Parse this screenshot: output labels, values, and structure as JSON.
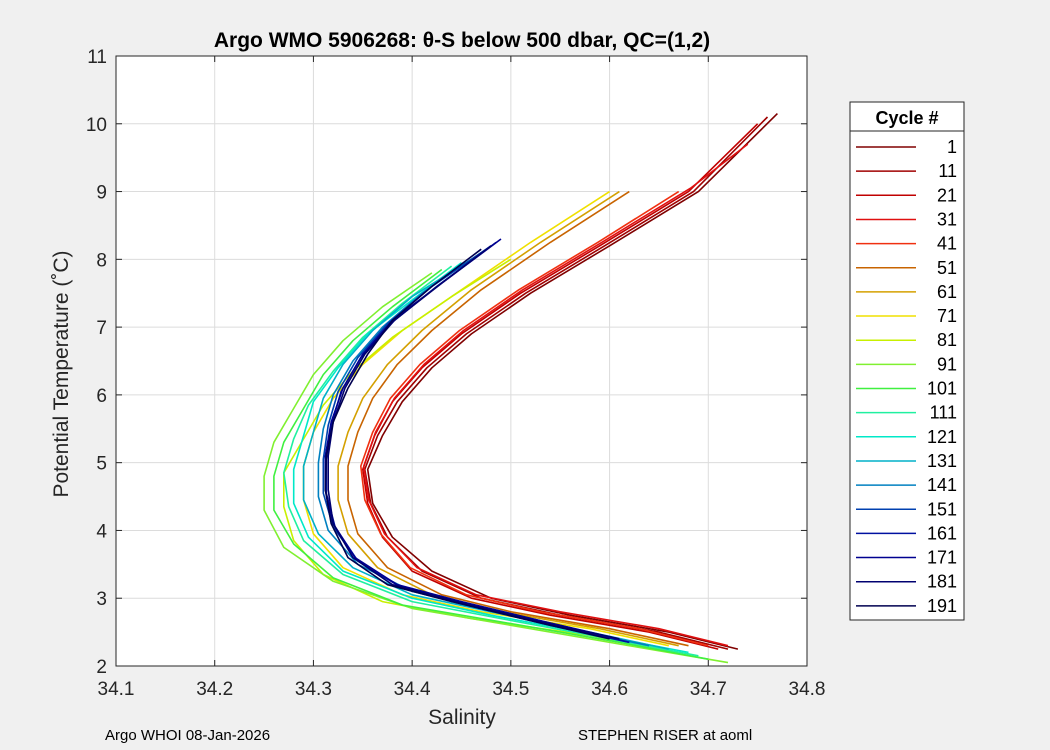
{
  "chart_data": {
    "type": "line",
    "title": "Argo WMO 5906268: θ-S below 500 dbar,  QC=(1,2)",
    "xlabel": "Salinity",
    "ylabel": "Potential Temperature (˚C)",
    "xlim": [
      34.1,
      34.8
    ],
    "ylim": [
      2,
      11
    ],
    "xticks": [
      "34.1",
      "34.2",
      "34.3",
      "34.4",
      "34.5",
      "34.6",
      "34.7",
      "34.8"
    ],
    "yticks": [
      "2",
      "3",
      "4",
      "5",
      "6",
      "7",
      "8",
      "9",
      "10",
      "11"
    ],
    "grid": true,
    "legend": {
      "title": "Cycle #",
      "position": "right",
      "entries": [
        "1",
        "11",
        "21",
        "31",
        "41",
        "51",
        "61",
        "71",
        "81",
        "91",
        "101",
        "111",
        "121",
        "131",
        "141",
        "151",
        "161",
        "171",
        "181",
        "191"
      ],
      "colors": [
        "#800000",
        "#a00000",
        "#c00000",
        "#e01010",
        "#f03010",
        "#c86400",
        "#d4a000",
        "#f0e000",
        "#c8f000",
        "#80f030",
        "#40f040",
        "#20f0a0",
        "#00e8c8",
        "#00b0c8",
        "#0080c0",
        "#0040b0",
        "#0010a0",
        "#000090",
        "#000070",
        "#000050"
      ]
    },
    "series": [
      {
        "name": "1",
        "color": "#800000",
        "s": [
          34.73,
          34.66,
          34.56,
          34.48,
          34.42,
          34.38,
          34.36,
          34.355,
          34.37,
          34.39,
          34.42,
          34.46,
          34.52,
          34.6,
          34.69,
          34.77
        ],
        "t": [
          2.25,
          2.5,
          2.75,
          3.0,
          3.4,
          3.9,
          4.4,
          4.9,
          5.4,
          5.9,
          6.4,
          6.9,
          7.5,
          8.2,
          9.0,
          10.15
        ]
      },
      {
        "name": "11",
        "color": "#a00000",
        "s": [
          34.72,
          34.65,
          34.55,
          34.47,
          34.41,
          34.375,
          34.358,
          34.352,
          34.365,
          34.385,
          34.415,
          34.455,
          34.515,
          34.595,
          34.685,
          34.76
        ],
        "t": [
          2.25,
          2.5,
          2.75,
          3.0,
          3.4,
          3.9,
          4.4,
          4.9,
          5.4,
          5.9,
          6.4,
          6.9,
          7.5,
          8.2,
          9.0,
          10.1
        ]
      },
      {
        "name": "21",
        "color": "#c00000",
        "s": [
          34.71,
          34.64,
          34.54,
          34.46,
          34.4,
          34.37,
          34.355,
          34.35,
          34.362,
          34.38,
          34.41,
          34.45,
          34.51,
          34.59,
          34.68,
          34.75
        ],
        "t": [
          2.25,
          2.5,
          2.75,
          3.0,
          3.4,
          3.9,
          4.4,
          4.9,
          5.4,
          5.9,
          6.4,
          6.9,
          7.5,
          8.2,
          9.0,
          10.0
        ]
      },
      {
        "name": "31",
        "color": "#e01010",
        "s": [
          34.72,
          34.65,
          34.55,
          34.465,
          34.405,
          34.372,
          34.356,
          34.351,
          34.363,
          34.382,
          34.412,
          34.452,
          34.512,
          34.592,
          34.682,
          34.74
        ],
        "t": [
          2.3,
          2.55,
          2.8,
          3.05,
          3.45,
          3.95,
          4.45,
          4.95,
          5.45,
          5.95,
          6.45,
          6.95,
          7.55,
          8.25,
          9.05,
          9.7
        ]
      },
      {
        "name": "41",
        "color": "#f03010",
        "s": [
          34.7,
          34.63,
          34.53,
          34.455,
          34.398,
          34.368,
          34.352,
          34.348,
          34.36,
          34.378,
          34.408,
          34.448,
          34.508,
          34.588,
          34.67
        ],
        "t": [
          2.3,
          2.55,
          2.8,
          3.05,
          3.45,
          3.95,
          4.45,
          4.95,
          5.45,
          5.95,
          6.45,
          6.95,
          7.55,
          8.25,
          9.0
        ]
      },
      {
        "name": "51",
        "color": "#c86400",
        "s": [
          34.68,
          34.6,
          34.5,
          34.43,
          34.375,
          34.345,
          34.335,
          34.335,
          34.345,
          34.36,
          34.385,
          34.42,
          34.47,
          34.54,
          34.62
        ],
        "t": [
          2.3,
          2.55,
          2.8,
          3.05,
          3.45,
          3.95,
          4.45,
          4.95,
          5.45,
          5.95,
          6.45,
          6.95,
          7.55,
          8.25,
          9.0
        ]
      },
      {
        "name": "61",
        "color": "#d4a000",
        "s": [
          34.67,
          34.59,
          34.49,
          34.42,
          34.365,
          34.335,
          34.325,
          34.325,
          34.335,
          34.35,
          34.375,
          34.41,
          34.46,
          34.53,
          34.61
        ],
        "t": [
          2.3,
          2.55,
          2.8,
          3.05,
          3.45,
          3.95,
          4.45,
          4.95,
          5.45,
          5.95,
          6.45,
          6.95,
          7.55,
          8.25,
          9.0
        ]
      },
      {
        "name": "71",
        "color": "#f0e000",
        "s": [
          34.66,
          34.58,
          34.47,
          34.39,
          34.33,
          34.3,
          34.29,
          34.29,
          34.3,
          34.32,
          34.35,
          34.39,
          34.45,
          34.52,
          34.6
        ],
        "t": [
          2.3,
          2.55,
          2.8,
          3.05,
          3.45,
          3.95,
          4.45,
          4.95,
          5.45,
          5.95,
          6.45,
          6.95,
          7.55,
          8.25,
          9.0
        ]
      },
      {
        "name": "81",
        "color": "#c8f000",
        "s": [
          34.67,
          34.58,
          34.46,
          34.37,
          34.31,
          34.28,
          34.27,
          34.27,
          34.29,
          34.31,
          34.34,
          34.38,
          34.44,
          34.5
        ],
        "t": [
          2.2,
          2.45,
          2.7,
          2.95,
          3.35,
          3.85,
          4.35,
          4.85,
          5.35,
          5.85,
          6.35,
          6.85,
          7.45,
          8.0
        ]
      },
      {
        "name": "91",
        "color": "#80f030",
        "s": [
          34.72,
          34.62,
          34.5,
          34.4,
          34.32,
          34.27,
          34.25,
          34.25,
          34.26,
          34.28,
          34.3,
          34.33,
          34.37,
          34.42
        ],
        "t": [
          2.05,
          2.3,
          2.6,
          2.85,
          3.25,
          3.75,
          4.3,
          4.8,
          5.3,
          5.8,
          6.3,
          6.8,
          7.3,
          7.8
        ]
      },
      {
        "name": "101",
        "color": "#40f040",
        "s": [
          34.7,
          34.61,
          34.49,
          34.39,
          34.32,
          34.28,
          34.26,
          34.26,
          34.27,
          34.29,
          34.31,
          34.34,
          34.38,
          34.43
        ],
        "t": [
          2.1,
          2.35,
          2.65,
          2.9,
          3.3,
          3.8,
          4.3,
          4.8,
          5.3,
          5.8,
          6.3,
          6.8,
          7.3,
          7.85
        ]
      },
      {
        "name": "111",
        "color": "#20f0a0",
        "s": [
          34.69,
          34.6,
          34.49,
          34.4,
          34.33,
          34.29,
          34.275,
          34.27,
          34.28,
          34.295,
          34.32,
          34.35,
          34.39,
          34.44
        ],
        "t": [
          2.15,
          2.4,
          2.7,
          2.95,
          3.35,
          3.85,
          4.35,
          4.85,
          5.35,
          5.85,
          6.35,
          6.85,
          7.35,
          7.9
        ]
      },
      {
        "name": "121",
        "color": "#00e8c8",
        "s": [
          34.68,
          34.59,
          34.48,
          34.4,
          34.33,
          34.295,
          34.28,
          34.28,
          34.29,
          34.3,
          34.325,
          34.355,
          34.4,
          34.45
        ],
        "t": [
          2.2,
          2.45,
          2.75,
          3.0,
          3.4,
          3.9,
          4.4,
          4.9,
          5.4,
          5.9,
          6.4,
          6.9,
          7.4,
          7.95
        ]
      },
      {
        "name": "131",
        "color": "#00b0c8",
        "s": [
          34.66,
          34.58,
          34.48,
          34.4,
          34.34,
          34.305,
          34.29,
          34.29,
          34.3,
          34.31,
          34.33,
          34.36,
          34.4,
          34.46
        ],
        "t": [
          2.25,
          2.5,
          2.8,
          3.05,
          3.45,
          3.95,
          4.45,
          4.95,
          5.45,
          5.95,
          6.45,
          6.95,
          7.45,
          8.0
        ]
      },
      {
        "name": "141",
        "color": "#0080c0",
        "s": [
          34.64,
          34.56,
          34.47,
          34.4,
          34.345,
          34.315,
          34.305,
          34.305,
          34.31,
          34.32,
          34.34,
          34.37,
          34.41,
          34.47
        ],
        "t": [
          2.3,
          2.55,
          2.85,
          3.1,
          3.5,
          4.0,
          4.5,
          5.0,
          5.5,
          6.0,
          6.5,
          7.0,
          7.5,
          8.1
        ]
      },
      {
        "name": "151",
        "color": "#0040b0",
        "s": [
          34.62,
          34.55,
          34.46,
          34.39,
          34.345,
          34.32,
          34.31,
          34.31,
          34.315,
          34.325,
          34.345,
          34.375,
          34.42,
          34.48
        ],
        "t": [
          2.35,
          2.6,
          2.9,
          3.15,
          3.55,
          4.05,
          4.55,
          5.05,
          5.55,
          6.05,
          6.55,
          7.05,
          7.6,
          8.2
        ]
      },
      {
        "name": "161",
        "color": "#0010a0",
        "s": [
          34.62,
          34.54,
          34.455,
          34.39,
          34.345,
          34.322,
          34.313,
          34.313,
          34.318,
          34.328,
          34.348,
          34.378,
          34.425,
          34.485
        ],
        "t": [
          2.35,
          2.6,
          2.9,
          3.15,
          3.55,
          4.05,
          4.55,
          5.05,
          5.55,
          6.05,
          6.55,
          7.05,
          7.6,
          8.25
        ]
      },
      {
        "name": "171",
        "color": "#000090",
        "s": [
          34.61,
          34.535,
          34.45,
          34.385,
          34.342,
          34.32,
          34.312,
          34.312,
          34.318,
          34.33,
          34.35,
          34.38,
          34.43,
          34.49
        ],
        "t": [
          2.4,
          2.65,
          2.95,
          3.2,
          3.6,
          4.1,
          4.6,
          5.1,
          5.6,
          6.1,
          6.6,
          7.1,
          7.65,
          8.3
        ]
      },
      {
        "name": "181",
        "color": "#000070",
        "s": [
          34.61,
          34.53,
          34.445,
          34.38,
          34.34,
          34.32,
          34.315,
          34.315,
          34.32,
          34.332,
          34.352,
          34.382,
          34.43,
          34.48
        ],
        "t": [
          2.4,
          2.65,
          2.95,
          3.2,
          3.6,
          4.1,
          4.6,
          5.1,
          5.6,
          6.1,
          6.6,
          7.1,
          7.65,
          8.2
        ]
      },
      {
        "name": "191",
        "color": "#000050",
        "s": [
          34.6,
          34.525,
          34.44,
          34.375,
          34.335,
          34.318,
          34.312,
          34.313,
          34.32,
          34.335,
          34.355,
          34.38,
          34.42,
          34.47
        ],
        "t": [
          2.4,
          2.65,
          2.95,
          3.2,
          3.6,
          4.1,
          4.6,
          5.1,
          5.6,
          6.1,
          6.6,
          7.1,
          7.6,
          8.15
        ]
      }
    ]
  },
  "footer": {
    "left": "Argo WHOI 08-Jan-2026",
    "right": "STEPHEN RISER at aoml"
  }
}
